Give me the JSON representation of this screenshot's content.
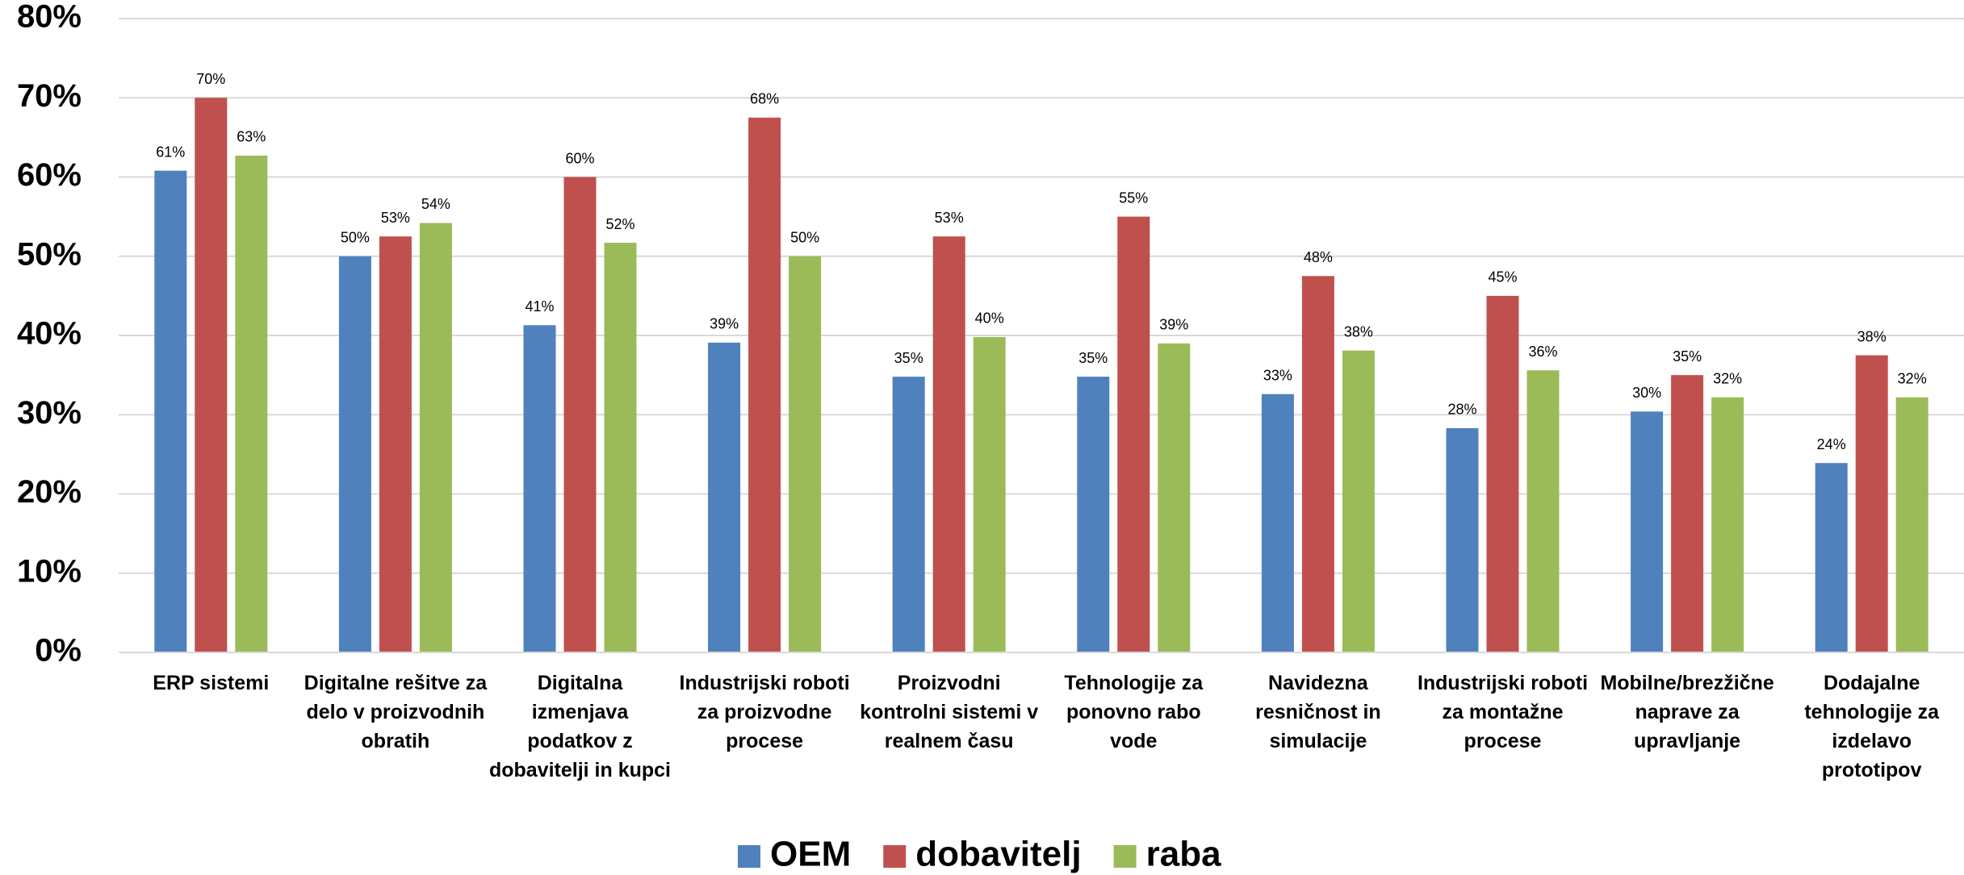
{
  "chart_data": {
    "type": "bar",
    "categories": [
      "ERP sistemi",
      "Digitalne rešitve za delo v proizvodnih obratih",
      "Digitalna izmenjava podatkov z dobavitelji in kupci",
      "Industrijski roboti za proizvodne procese",
      "Proizvodni kontrolni sistemi v realnem času",
      "Tehnologije za ponovno rabo vode",
      "Navidezna resničnost in simulacije",
      "Industrijski roboti za montažne procese",
      "Mobilne/brezžične naprave za upravljanje",
      "Dodajalne tehnologije za izdelavo prototipov"
    ],
    "series": [
      {
        "name": "OEM",
        "color": "#4f81bd",
        "values": [
          60.8,
          50,
          41.3,
          39.1,
          34.8,
          34.8,
          32.6,
          28.3,
          30.4,
          23.9
        ],
        "value_labels": [
          "61%",
          "50%",
          "41%",
          "39%",
          "35%",
          "35%",
          "33%",
          "28%",
          "30%",
          "24%"
        ]
      },
      {
        "name": "dobavitelj",
        "color": "#c0504d",
        "values": [
          70,
          52.5,
          60,
          67.5,
          52.5,
          55,
          47.5,
          45,
          35,
          37.5
        ],
        "value_labels": [
          "70%",
          "53%",
          "60%",
          "68%",
          "53%",
          "55%",
          "48%",
          "45%",
          "35%",
          "38%"
        ]
      },
      {
        "name": "raba",
        "color": "#9bbb59",
        "values": [
          62.7,
          54.2,
          51.7,
          50,
          39.8,
          39,
          38.1,
          35.6,
          32.2,
          32.2
        ],
        "value_labels": [
          "63%",
          "54%",
          "52%",
          "50%",
          "40%",
          "39%",
          "38%",
          "36%",
          "32%",
          "32%"
        ]
      }
    ],
    "ylim": [
      0,
      80
    ],
    "yticks": [
      {
        "value": 0,
        "label": "0%"
      },
      {
        "value": 10,
        "label": "10%"
      },
      {
        "value": 20,
        "label": "20%"
      },
      {
        "value": 30,
        "label": "30%"
      },
      {
        "value": 40,
        "label": "40%"
      },
      {
        "value": 50,
        "label": "50%"
      },
      {
        "value": 60,
        "label": "60%"
      },
      {
        "value": 70,
        "label": "70%"
      },
      {
        "value": 80,
        "label": "80%"
      }
    ],
    "grid": true,
    "legend": "bottom"
  }
}
